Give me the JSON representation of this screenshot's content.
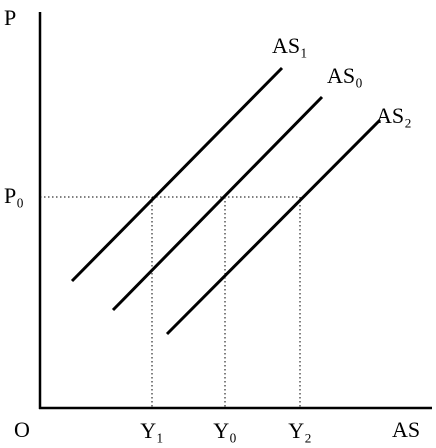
{
  "axes": {
    "y_label": "P",
    "origin": "O",
    "x_label": "AS"
  },
  "curves": [
    {
      "label": "AS₁"
    },
    {
      "label": "AS₀"
    },
    {
      "label": "AS₂"
    }
  ],
  "price_level": "P₀",
  "outputs": [
    "Y₁",
    "Y₀",
    "Y₂"
  ]
}
